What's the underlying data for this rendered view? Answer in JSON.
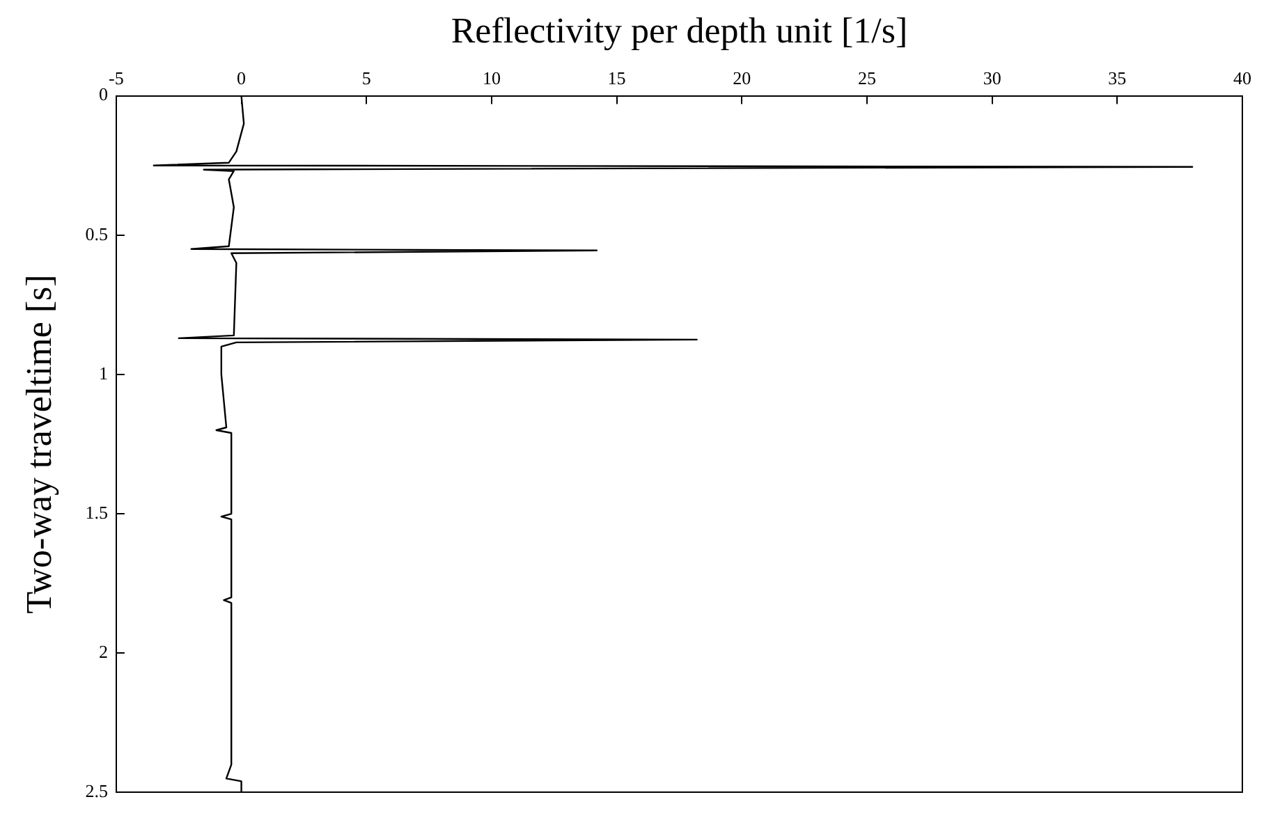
{
  "chart_data": {
    "type": "line",
    "xlabel": "Reflectivity per depth unit [1/s]",
    "ylabel": "Two-way traveltime [s]",
    "xlim": [
      -5,
      40
    ],
    "xticks": [
      -5,
      0,
      5,
      10,
      15,
      20,
      25,
      30,
      35,
      40
    ],
    "ylim": [
      2.5,
      0
    ],
    "yticks": [
      0,
      0.5,
      1,
      1.5,
      2,
      2.5
    ],
    "grid": false,
    "legend": false,
    "marker": "none",
    "line_style": "solid",
    "series": [
      {
        "color": "#000000",
        "x": [
          0,
          0.1,
          -0.2,
          -0.5,
          -3.5,
          38,
          -1.5,
          -0.3,
          -0.5,
          -0.3,
          -0.5,
          -2,
          14.2,
          -0.4,
          -0.2,
          -0.3,
          -2.5,
          18.2,
          -0.2,
          -0.8,
          -0.8,
          -0.6,
          -1,
          -0.4,
          -0.4,
          -0.8,
          -0.4,
          -0.4,
          -0.7,
          -0.4,
          -0.4,
          -0.6,
          0,
          0
        ],
        "values": [
          0,
          0.1,
          0.2,
          0.24,
          0.25,
          0.255,
          0.265,
          0.27,
          0.3,
          0.4,
          0.54,
          0.55,
          0.555,
          0.565,
          0.6,
          0.86,
          0.87,
          0.875,
          0.885,
          0.9,
          1.0,
          1.19,
          1.2,
          1.21,
          1.5,
          1.51,
          1.52,
          1.8,
          1.81,
          1.82,
          2.4,
          2.45,
          2.46,
          2.5
        ]
      }
    ]
  }
}
